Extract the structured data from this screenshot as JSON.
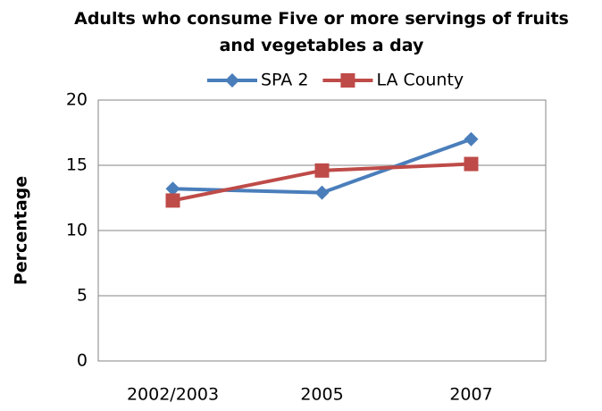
{
  "chart_data": {
    "type": "line",
    "title": "Adults who consume Five or more servings of fruits and vegetables a day",
    "y_label": "Percentage",
    "categories": [
      "2002/2003",
      "2005",
      "2007"
    ],
    "series": [
      {
        "name": "SPA 2",
        "color": "#4a7ebb",
        "marker": "diamond",
        "values": [
          13.2,
          12.9,
          17.0
        ]
      },
      {
        "name": "LA County",
        "color": "#be4b48",
        "marker": "square",
        "values": [
          12.3,
          14.6,
          15.1
        ]
      }
    ],
    "ylim": [
      0,
      20
    ],
    "yticks": [
      0,
      5,
      10,
      15,
      20
    ],
    "grid": true,
    "legend": "top"
  }
}
